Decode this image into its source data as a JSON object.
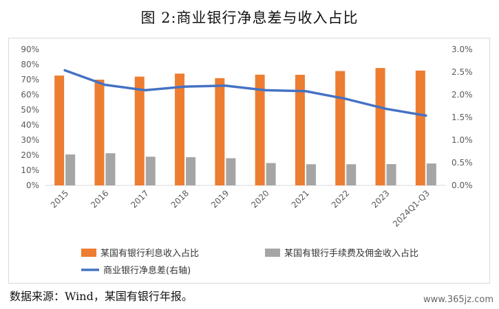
{
  "title": "图 2:商业银行净息差与收入占比",
  "source": "数据来源：Wind，某国有银行年报。",
  "watermark": "www.365jz.com",
  "colors": {
    "interest": "#ED7D31",
    "fee": "#A5A5A5",
    "nim": "#4472C4"
  },
  "chart_data": {
    "type": "bar+line",
    "categories": [
      "2015",
      "2016",
      "2017",
      "2018",
      "2019",
      "2020",
      "2021",
      "2022",
      "2023",
      "2024Q1-Q3"
    ],
    "series": [
      {
        "name": "某国有银行利息收入占比",
        "type": "bar",
        "axis": "left",
        "values": [
          72.7,
          70.0,
          72.0,
          74.0,
          71.0,
          73.3,
          73.2,
          75.7,
          77.7,
          76.0
        ]
      },
      {
        "name": "某国有银行手续费及佣金收入占比",
        "type": "bar",
        "axis": "left",
        "values": [
          20.5,
          21.3,
          19.0,
          18.7,
          18.0,
          14.8,
          14.0,
          14.0,
          14.1,
          14.5
        ]
      },
      {
        "name": "商业银行净息差(右轴)",
        "type": "line",
        "axis": "right",
        "values": [
          2.54,
          2.22,
          2.1,
          2.18,
          2.2,
          2.1,
          2.08,
          1.91,
          1.69,
          1.54
        ]
      }
    ],
    "y_left": {
      "min": 0,
      "max": 90,
      "step": 10,
      "unit": "%",
      "ticks": [
        "0%",
        "10%",
        "20%",
        "30%",
        "40%",
        "50%",
        "60%",
        "70%",
        "80%",
        "90%"
      ]
    },
    "y_right": {
      "min": 0,
      "max": 3.0,
      "step": 0.5,
      "ticks": [
        "0.0%",
        "0.5%",
        "1.0%",
        "1.5%",
        "2.0%",
        "2.5%",
        "3.0%"
      ]
    },
    "legend_position": "bottom",
    "grid": false
  }
}
